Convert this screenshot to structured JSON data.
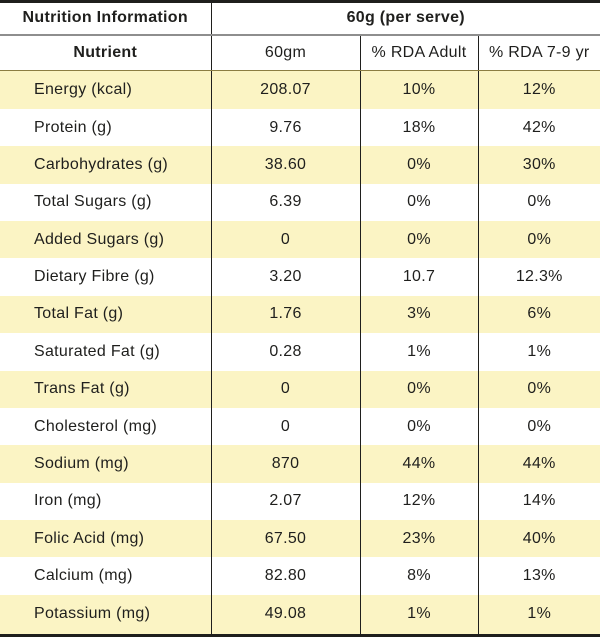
{
  "colors": {
    "highlight_row": "#FBF4C4",
    "border_dark": "#1F1F1D",
    "header_separator_gray": "#8E8E8E",
    "header_separator_olive": "#8B7D42",
    "text": "#1F1F1D",
    "background": "#FFFFFF"
  },
  "table": {
    "title": "Nutrition Information",
    "serving": "60g (per serve)",
    "columns": [
      "Nutrient",
      "60gm",
      "% RDA Adult",
      "% RDA 7-9 yr"
    ],
    "rows": [
      {
        "nutrient": "Energy (kcal)",
        "amount": "208.07",
        "rda_adult": "10%",
        "rda_7_9": "12%"
      },
      {
        "nutrient": "Protein (g)",
        "amount": "9.76",
        "rda_adult": "18%",
        "rda_7_9": "42%"
      },
      {
        "nutrient": "Carbohydrates (g)",
        "amount": "38.60",
        "rda_adult": "0%",
        "rda_7_9": "30%"
      },
      {
        "nutrient": "Total Sugars (g)",
        "amount": "6.39",
        "rda_adult": "0%",
        "rda_7_9": "0%"
      },
      {
        "nutrient": "Added Sugars (g)",
        "amount": "0",
        "rda_adult": "0%",
        "rda_7_9": "0%"
      },
      {
        "nutrient": "Dietary Fibre (g)",
        "amount": "3.20",
        "rda_adult": "10.7",
        "rda_7_9": "12.3%"
      },
      {
        "nutrient": "Total Fat (g)",
        "amount": "1.76",
        "rda_adult": "3%",
        "rda_7_9": "6%"
      },
      {
        "nutrient": "Saturated Fat (g)",
        "amount": "0.28",
        "rda_adult": "1%",
        "rda_7_9": "1%"
      },
      {
        "nutrient": "Trans Fat (g)",
        "amount": "0",
        "rda_adult": "0%",
        "rda_7_9": "0%"
      },
      {
        "nutrient": "Cholesterol (mg)",
        "amount": "0",
        "rda_adult": "0%",
        "rda_7_9": "0%"
      },
      {
        "nutrient": "Sodium (mg)",
        "amount": "870",
        "rda_adult": "44%",
        "rda_7_9": "44%"
      },
      {
        "nutrient": "Iron (mg)",
        "amount": "2.07",
        "rda_adult": "12%",
        "rda_7_9": "14%"
      },
      {
        "nutrient": "Folic Acid (mg)",
        "amount": "67.50",
        "rda_adult": "23%",
        "rda_7_9": "40%"
      },
      {
        "nutrient": "Calcium (mg)",
        "amount": "82.80",
        "rda_adult": "8%",
        "rda_7_9": "13%"
      },
      {
        "nutrient": "Potassium (mg)",
        "amount": "49.08",
        "rda_adult": "1%",
        "rda_7_9": "1%"
      }
    ]
  }
}
